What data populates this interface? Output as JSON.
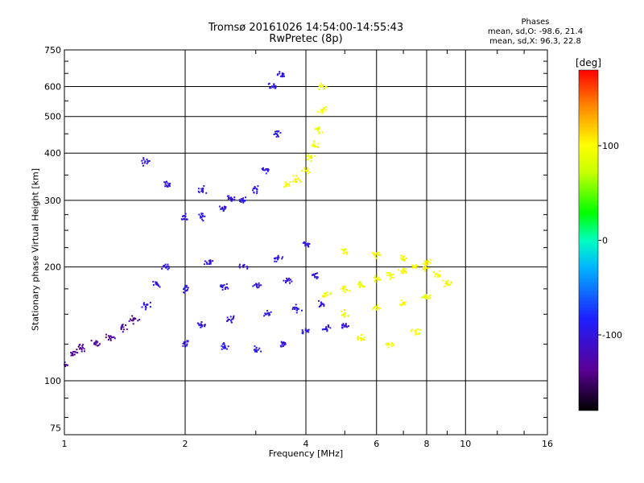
{
  "chart_data": {
    "type": "scatter",
    "title": "Tromsø 20161026 14:54:00-14:55:43",
    "subtitle": "RwPretec (8p)",
    "xlabel": "Frequency [MHz]",
    "ylabel": "Stationary phase Virtual Height [km]",
    "x_scale": "log",
    "y_scale": "log",
    "xlim": [
      1,
      16
    ],
    "ylim": [
      72,
      750
    ],
    "x_ticks": [
      "1",
      "2",
      "4",
      "6",
      "8",
      "10",
      "16"
    ],
    "x_tick_values": [
      1,
      2,
      4,
      6,
      8,
      10,
      16
    ],
    "y_ticks": [
      "75",
      "100",
      "200",
      "300",
      "400",
      "500",
      "600",
      "750"
    ],
    "y_tick_values": [
      75,
      100,
      200,
      300,
      400,
      500,
      600,
      750
    ],
    "grid": true,
    "color_variable": "Phase [deg]",
    "colorbar": {
      "label": "[deg]",
      "ticks": [
        "100",
        "0",
        "-100"
      ],
      "tick_values": [
        100,
        0,
        -100
      ],
      "range": [
        -180,
        180
      ]
    },
    "phase_box": {
      "heading": "Phases",
      "line_o": "mean, sd,O: -98.6, 21.4",
      "line_x": "mean, sd,X:  96.3, 22.8"
    },
    "series": [
      {
        "mode": "O",
        "phase_mean": -98.6,
        "phase_sd": 21.4,
        "points": [
          [
            1.0,
            110
          ],
          [
            1.05,
            118
          ],
          [
            1.1,
            122
          ],
          [
            1.2,
            126
          ],
          [
            1.3,
            130
          ],
          [
            1.4,
            138
          ],
          [
            1.5,
            145
          ],
          [
            1.6,
            158
          ],
          [
            1.7,
            180
          ],
          [
            1.8,
            200
          ],
          [
            2.0,
            270
          ],
          [
            2.2,
            272
          ],
          [
            2.5,
            285
          ],
          [
            2.8,
            300
          ],
          [
            3.0,
            320
          ],
          [
            3.2,
            360
          ],
          [
            3.4,
            450
          ],
          [
            3.5,
            640
          ],
          [
            3.3,
            600
          ],
          [
            2.0,
            125
          ],
          [
            2.5,
            123
          ],
          [
            3.0,
            121
          ],
          [
            3.5,
            125
          ],
          [
            4.0,
            135
          ],
          [
            4.5,
            138
          ],
          [
            5.0,
            140
          ],
          [
            2.2,
            140
          ],
          [
            2.6,
            145
          ],
          [
            3.2,
            150
          ],
          [
            3.8,
            155
          ],
          [
            4.4,
            160
          ],
          [
            2.0,
            175
          ],
          [
            2.5,
            178
          ],
          [
            3.0,
            180
          ],
          [
            3.6,
            185
          ],
          [
            4.2,
            190
          ],
          [
            2.3,
            205
          ],
          [
            2.8,
            200
          ],
          [
            3.4,
            210
          ],
          [
            4.0,
            230
          ],
          [
            1.6,
            380
          ],
          [
            1.8,
            330
          ],
          [
            2.2,
            320
          ],
          [
            2.6,
            305
          ]
        ]
      },
      {
        "mode": "X",
        "phase_mean": 96.3,
        "phase_sd": 22.8,
        "points": [
          [
            3.6,
            330
          ],
          [
            3.8,
            340
          ],
          [
            4.0,
            360
          ],
          [
            4.1,
            390
          ],
          [
            4.2,
            420
          ],
          [
            4.3,
            460
          ],
          [
            4.4,
            520
          ],
          [
            4.4,
            600
          ],
          [
            4.5,
            170
          ],
          [
            5.0,
            175
          ],
          [
            5.5,
            180
          ],
          [
            6.0,
            185
          ],
          [
            6.5,
            190
          ],
          [
            7.0,
            195
          ],
          [
            7.5,
            200
          ],
          [
            8.0,
            205
          ],
          [
            8.5,
            190
          ],
          [
            9.0,
            180
          ],
          [
            5.0,
            150
          ],
          [
            6.0,
            155
          ],
          [
            7.0,
            160
          ],
          [
            8.0,
            165
          ],
          [
            5.5,
            130
          ],
          [
            6.5,
            125
          ],
          [
            7.5,
            135
          ],
          [
            5.0,
            220
          ],
          [
            6.0,
            215
          ],
          [
            7.0,
            210
          ],
          [
            8.0,
            200
          ]
        ]
      }
    ]
  }
}
